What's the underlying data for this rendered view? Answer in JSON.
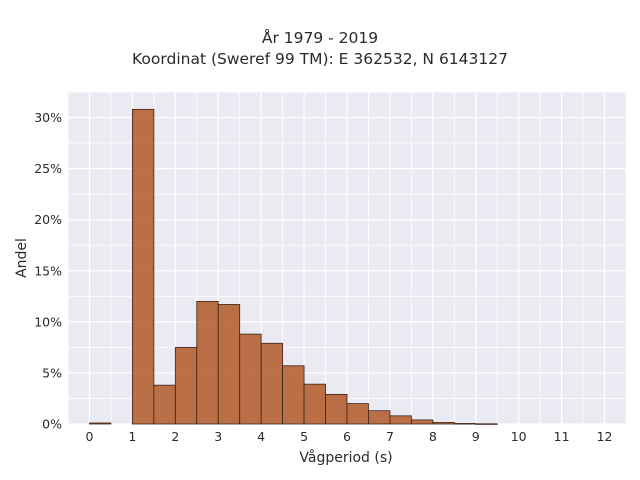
{
  "chart_data": {
    "type": "bar",
    "title": "År 1979 - 2019",
    "subtitle": "Koordinat (Sweref 99 TM): E 362532, N 6143127",
    "xlabel": "Vågperiod (s)",
    "ylabel": "Andel",
    "xlim": [
      -0.5,
      12.5
    ],
    "ylim": [
      0,
      0.325
    ],
    "x_ticks": [
      0,
      1,
      2,
      3,
      4,
      5,
      6,
      7,
      8,
      9,
      10,
      11,
      12
    ],
    "y_ticks": [
      0,
      0.05,
      0.1,
      0.15,
      0.2,
      0.25,
      0.3
    ],
    "y_tick_labels": [
      "0%",
      "5%",
      "10%",
      "15%",
      "20%",
      "25%",
      "30%"
    ],
    "bin_width": 0.5,
    "bins": [
      {
        "x0": 0.0,
        "x1": 0.5,
        "value": 0.001
      },
      {
        "x0": 1.0,
        "x1": 1.5,
        "value": 0.308
      },
      {
        "x0": 1.5,
        "x1": 2.0,
        "value": 0.038
      },
      {
        "x0": 2.0,
        "x1": 2.5,
        "value": 0.075
      },
      {
        "x0": 2.5,
        "x1": 3.0,
        "value": 0.12
      },
      {
        "x0": 3.0,
        "x1": 3.5,
        "value": 0.117
      },
      {
        "x0": 3.5,
        "x1": 4.0,
        "value": 0.088
      },
      {
        "x0": 4.0,
        "x1": 4.5,
        "value": 0.079
      },
      {
        "x0": 4.5,
        "x1": 5.0,
        "value": 0.057
      },
      {
        "x0": 5.0,
        "x1": 5.5,
        "value": 0.039
      },
      {
        "x0": 5.5,
        "x1": 6.0,
        "value": 0.029
      },
      {
        "x0": 6.0,
        "x1": 6.5,
        "value": 0.02
      },
      {
        "x0": 6.5,
        "x1": 7.0,
        "value": 0.013
      },
      {
        "x0": 7.0,
        "x1": 7.5,
        "value": 0.008
      },
      {
        "x0": 7.5,
        "x1": 8.0,
        "value": 0.004
      },
      {
        "x0": 8.0,
        "x1": 8.5,
        "value": 0.0015
      },
      {
        "x0": 8.5,
        "x1": 9.0,
        "value": 0.0005
      },
      {
        "x0": 9.0,
        "x1": 9.5,
        "value": 0.0002
      }
    ],
    "grid": true,
    "bar_color": "#b8683d",
    "bar_edge_color": "#3d2416",
    "plot_background": "#eaeaf2",
    "grid_color": "#ffffff"
  }
}
